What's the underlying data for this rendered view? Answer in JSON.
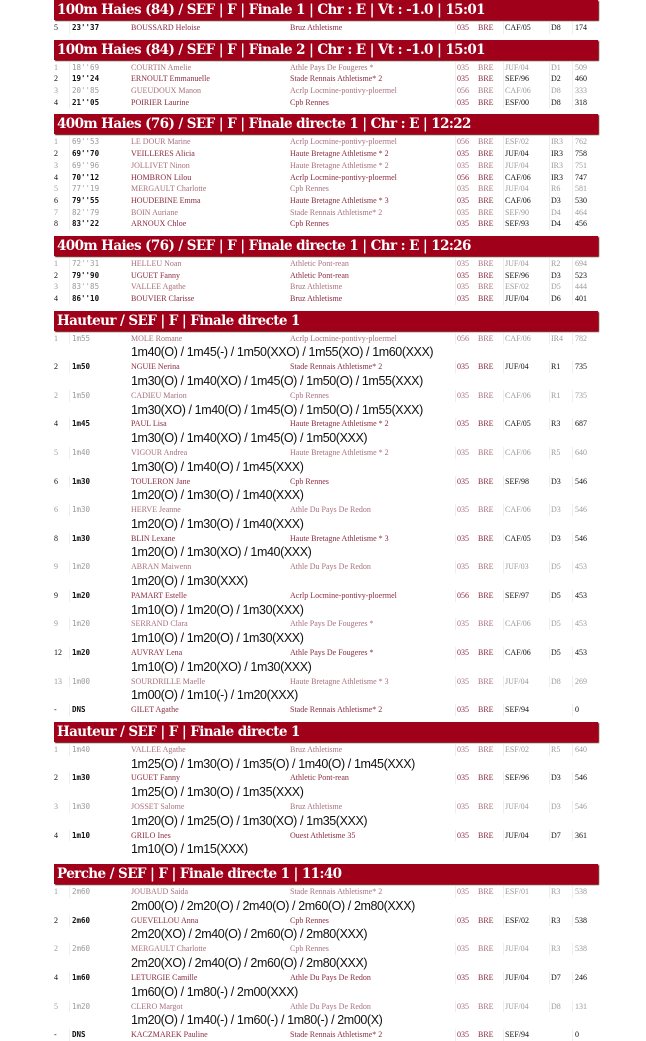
{
  "colors": {
    "header_bg": "#a0001a",
    "header_text": "#ffffff",
    "club_text": "#8a2a3e"
  },
  "sections": [
    {
      "title": "100m Haies (84) / SEF | F | Finale 1 | Chr : E | Vt : -1.0 | 15:01",
      "rows": [
        {
          "rank": "5",
          "perf": "23''37",
          "name": "BOUSSARD Heloise",
          "club": "Bruz Athletisme",
          "dept": "035",
          "region": "BRE",
          "cat": "CAF/05",
          "level": "D8",
          "points": "174"
        }
      ]
    },
    {
      "title": "100m Haies (84) / SEF | F | Finale 2 | Chr : E | Vt : -1.0 | 15:01",
      "rows": [
        {
          "rank": "1",
          "perf": "18''69",
          "name": "COURTIN Amelie",
          "club": "Athle Pays De Fougeres *",
          "dept": "035",
          "region": "BRE",
          "cat": "JUF/04",
          "level": "D1",
          "points": "509"
        },
        {
          "rank": "2",
          "perf": "19''24",
          "name": "ERNOULT Emmanuelle",
          "club": "Stade Rennais Athletisme* 2",
          "dept": "035",
          "region": "BRE",
          "cat": "SEF/96",
          "level": "D2",
          "points": "460"
        },
        {
          "rank": "3",
          "perf": "20''85",
          "name": "GUEUDOUX Manon",
          "club": "Acrlp Locmine-pontivy-ploermel",
          "dept": "056",
          "region": "BRE",
          "cat": "CAF/06",
          "level": "D8",
          "points": "333"
        },
        {
          "rank": "4",
          "perf": "21''05",
          "name": "POIRIER Laurine",
          "club": "Cpb Rennes",
          "dept": "035",
          "region": "BRE",
          "cat": "ESF/00",
          "level": "D8",
          "points": "318"
        }
      ]
    },
    {
      "title": "400m Haies (76) / SEF | F | Finale directe 1 | Chr : E | 12:22",
      "rows": [
        {
          "rank": "1",
          "perf": "69''53",
          "name": "LE DOUR Marine",
          "club": "Acrlp Locmine-pontivy-ploermel",
          "dept": "056",
          "region": "BRE",
          "cat": "ESF/02",
          "level": "IR3",
          "points": "762"
        },
        {
          "rank": "2",
          "perf": "69''70",
          "name": "VEILLERES Alicia",
          "club": "Haute Bretagne Athletisme * 2",
          "dept": "035",
          "region": "BRE",
          "cat": "JUF/04",
          "level": "IR3",
          "points": "758"
        },
        {
          "rank": "3",
          "perf": "69''96",
          "name": "JOLLIVET Ninon",
          "club": "Haute Bretagne Athletisme * 2",
          "dept": "035",
          "region": "BRE",
          "cat": "JUF/04",
          "level": "IR3",
          "points": "751"
        },
        {
          "rank": "4",
          "perf": "70''12",
          "name": "HOMBRON Lilou",
          "club": "Acrlp Locmine-pontivy-ploermel",
          "dept": "056",
          "region": "BRE",
          "cat": "CAF/06",
          "level": "IR3",
          "points": "747"
        },
        {
          "rank": "5",
          "perf": "77''19",
          "name": "MERGAULT Charlotte",
          "club": "Cpb Rennes",
          "dept": "035",
          "region": "BRE",
          "cat": "JUF/04",
          "level": "R6",
          "points": "581"
        },
        {
          "rank": "6",
          "perf": "79''55",
          "name": "HOUDEBINE Emma",
          "club": "Haute Bretagne Athletisme * 3",
          "dept": "035",
          "region": "BRE",
          "cat": "CAF/06",
          "level": "D3",
          "points": "530"
        },
        {
          "rank": "7",
          "perf": "82''79",
          "name": "BOIN Auriane",
          "club": "Stade Rennais Athletisme* 2",
          "dept": "035",
          "region": "BRE",
          "cat": "SEF/90",
          "level": "D4",
          "points": "464"
        },
        {
          "rank": "8",
          "perf": "83''22",
          "name": "ARNOUX Chloe",
          "club": "Cpb Rennes",
          "dept": "035",
          "region": "BRE",
          "cat": "SEF/93",
          "level": "D4",
          "points": "456"
        }
      ]
    },
    {
      "title": "400m Haies (76) / SEF | F | Finale directe 1 | Chr : E | 12:26",
      "rows": [
        {
          "rank": "1",
          "perf": "72''31",
          "name": "HELLEU Noan",
          "club": "Athletic Pont-rean",
          "dept": "035",
          "region": "BRE",
          "cat": "JUF/04",
          "level": "R2",
          "points": "694"
        },
        {
          "rank": "2",
          "perf": "79''90",
          "name": "UGUET Fanny",
          "club": "Athletic Pont-rean",
          "dept": "035",
          "region": "BRE",
          "cat": "SEF/96",
          "level": "D3",
          "points": "523"
        },
        {
          "rank": "3",
          "perf": "83''85",
          "name": "VALLEE Agathe",
          "club": "Bruz Athletisme",
          "dept": "035",
          "region": "BRE",
          "cat": "ESF/02",
          "level": "D5",
          "points": "444"
        },
        {
          "rank": "4",
          "perf": "86''10",
          "name": "BOUVIER Clarisse",
          "club": "Bruz Athletisme",
          "dept": "035",
          "region": "BRE",
          "cat": "JUF/04",
          "level": "D6",
          "points": "401"
        }
      ]
    },
    {
      "title": "Hauteur / SEF | F | Finale directe 1",
      "rows": [
        {
          "rank": "1",
          "perf": "1m55",
          "name": "MOLE Romane",
          "club": "Acrlp Locmine-pontivy-ploermel",
          "dept": "056",
          "region": "BRE",
          "cat": "CAF/06",
          "level": "IR4",
          "points": "782",
          "attempts": "1m40(O) / 1m45(-) / 1m50(XXO) / 1m55(XO) / 1m60(XXX)"
        },
        {
          "rank": "2",
          "perf": "1m50",
          "name": "NGUIE Nerina",
          "club": "Stade Rennais Athletisme* 2",
          "dept": "035",
          "region": "BRE",
          "cat": "JUF/04",
          "level": "R1",
          "points": "735",
          "attempts": "1m30(O) / 1m40(XO) / 1m45(O) / 1m50(O) / 1m55(XXX)"
        },
        {
          "rank": "2",
          "perf": "1m50",
          "name": "CADIEU Marion",
          "club": "Cpb Rennes",
          "dept": "035",
          "region": "BRE",
          "cat": "CAF/06",
          "level": "R1",
          "points": "735",
          "attempts": "1m30(XO) / 1m40(O) / 1m45(O) / 1m50(O) / 1m55(XXX)"
        },
        {
          "rank": "4",
          "perf": "1m45",
          "name": "PAUL Lisa",
          "club": "Haute Bretagne Athletisme * 2",
          "dept": "035",
          "region": "BRE",
          "cat": "CAF/05",
          "level": "R3",
          "points": "687",
          "attempts": "1m30(O) / 1m40(XO) / 1m45(O) / 1m50(XXX)"
        },
        {
          "rank": "5",
          "perf": "1m40",
          "name": "VIGOUR Andrea",
          "club": "Haute Bretagne Athletisme * 2",
          "dept": "035",
          "region": "BRE",
          "cat": "CAF/06",
          "level": "R5",
          "points": "640",
          "attempts": "1m30(O) / 1m40(O) / 1m45(XXX)"
        },
        {
          "rank": "6",
          "perf": "1m30",
          "name": "TOULERON Jane",
          "club": "Cpb Rennes",
          "dept": "035",
          "region": "BRE",
          "cat": "SEF/98",
          "level": "D3",
          "points": "546",
          "attempts": "1m20(O) / 1m30(O) / 1m40(XXX)"
        },
        {
          "rank": "6",
          "perf": "1m30",
          "name": "HERVE Jeanne",
          "club": "Athle Du Pays De Redon",
          "dept": "035",
          "region": "BRE",
          "cat": "CAF/06",
          "level": "D3",
          "points": "546",
          "attempts": "1m20(O) / 1m30(O) / 1m40(XXX)"
        },
        {
          "rank": "8",
          "perf": "1m30",
          "name": "BLIN Lexane",
          "club": "Haute Bretagne Athletisme * 3",
          "dept": "035",
          "region": "BRE",
          "cat": "CAF/05",
          "level": "D3",
          "points": "546",
          "attempts": "1m20(O) / 1m30(XO) / 1m40(XXX)"
        },
        {
          "rank": "9",
          "perf": "1m20",
          "name": "ABRAN Maiwenn",
          "club": "Athle Du Pays De Redon",
          "dept": "035",
          "region": "BRE",
          "cat": "JUF/03",
          "level": "D5",
          "points": "453",
          "attempts": "1m20(O) / 1m30(XXX)"
        },
        {
          "rank": "9",
          "perf": "1m20",
          "name": "PAMART Estelle",
          "club": "Acrlp Locmine-pontivy-ploermel",
          "dept": "056",
          "region": "BRE",
          "cat": "SEF/97",
          "level": "D5",
          "points": "453",
          "attempts": "1m10(O) / 1m20(O) / 1m30(XXX)"
        },
        {
          "rank": "9",
          "perf": "1m20",
          "name": "SERRAND Clara",
          "club": "Athle Pays De Fougeres *",
          "dept": "035",
          "region": "BRE",
          "cat": "CAF/06",
          "level": "D5",
          "points": "453",
          "attempts": "1m10(O) / 1m20(O) / 1m30(XXX)"
        },
        {
          "rank": "12",
          "perf": "1m20",
          "name": "AUVRAY Lena",
          "club": "Athle Pays De Fougeres *",
          "dept": "035",
          "region": "BRE",
          "cat": "CAF/06",
          "level": "D5",
          "points": "453",
          "attempts": "1m10(O) / 1m20(XO) / 1m30(XXX)"
        },
        {
          "rank": "13",
          "perf": "1m00",
          "name": "SOURDRILLE Maelle",
          "club": "Haute Bretagne Athletisme * 3",
          "dept": "035",
          "region": "BRE",
          "cat": "JUF/04",
          "level": "D8",
          "points": "269",
          "attempts": "1m00(O) / 1m10(-) / 1m20(XXX)"
        },
        {
          "rank": "-",
          "perf": "DNS",
          "name": "GILET Agathe",
          "club": "Stade Rennais Athletisme* 2",
          "dept": "035",
          "region": "BRE",
          "cat": "SEF/94",
          "level": "",
          "points": "0"
        }
      ]
    },
    {
      "title": "Hauteur / SEF | F | Finale directe 1",
      "rows": [
        {
          "rank": "1",
          "perf": "1m40",
          "name": "VALLEE Agathe",
          "club": "Bruz Athletisme",
          "dept": "035",
          "region": "BRE",
          "cat": "ESF/02",
          "level": "R5",
          "points": "640",
          "attempts": "1m25(O) / 1m30(O) / 1m35(O) / 1m40(O) / 1m45(XXX)"
        },
        {
          "rank": "2",
          "perf": "1m30",
          "name": "UGUET Fanny",
          "club": "Athletic Pont-rean",
          "dept": "035",
          "region": "BRE",
          "cat": "SEF/96",
          "level": "D3",
          "points": "546",
          "attempts": "1m25(O) / 1m30(O) / 1m35(XXX)"
        },
        {
          "rank": "3",
          "perf": "1m30",
          "name": "JOSSET Salome",
          "club": "Bruz Athletisme",
          "dept": "035",
          "region": "BRE",
          "cat": "JUF/04",
          "level": "D3",
          "points": "546",
          "attempts": "1m20(O) / 1m25(O) / 1m30(XO) / 1m35(XXX)"
        },
        {
          "rank": "4",
          "perf": "1m10",
          "name": "GRILO Ines",
          "club": "Ouest Athletisme 35",
          "dept": "035",
          "region": "BRE",
          "cat": "JUF/04",
          "level": "D7",
          "points": "361",
          "attempts": "1m10(O) / 1m15(XXX)"
        }
      ]
    },
    {
      "title": "Perche / SEF | F | Finale directe 1 | 11:40",
      "rows": [
        {
          "rank": "1",
          "perf": "2m60",
          "name": "JOUBAUD Saida",
          "club": "Stade Rennais Athletisme* 2",
          "dept": "035",
          "region": "BRE",
          "cat": "ESF/01",
          "level": "R3",
          "points": "538",
          "attempts": "2m00(O) / 2m20(O) / 2m40(O) / 2m60(O) / 2m80(XXX)"
        },
        {
          "rank": "2",
          "perf": "2m60",
          "name": "GUEVELLOU Anna",
          "club": "Cpb Rennes",
          "dept": "035",
          "region": "BRE",
          "cat": "ESF/02",
          "level": "R3",
          "points": "538",
          "attempts": "2m20(XO) / 2m40(O) / 2m60(O) / 2m80(XXX)"
        },
        {
          "rank": "2",
          "perf": "2m60",
          "name": "MERGAULT Charlotte",
          "club": "Cpb Rennes",
          "dept": "035",
          "region": "BRE",
          "cat": "JUF/04",
          "level": "R3",
          "points": "538",
          "attempts": "2m20(XO) / 2m40(O) / 2m60(O) / 2m80(XXX)"
        },
        {
          "rank": "4",
          "perf": "1m60",
          "name": "LETURGIE Camille",
          "club": "Athle Du Pays De Redon",
          "dept": "035",
          "region": "BRE",
          "cat": "JUF/04",
          "level": "D7",
          "points": "246",
          "attempts": "1m60(O) / 1m80(-) / 2m00(XXX)"
        },
        {
          "rank": "5",
          "perf": "1m20",
          "name": "CLERO Margot",
          "club": "Athle Du Pays De Redon",
          "dept": "035",
          "region": "BRE",
          "cat": "JUF/04",
          "level": "D8",
          "points": "131",
          "attempts": "1m20(O) / 1m40(-) / 1m60(-) / 1m80(-) / 2m00(X)"
        },
        {
          "rank": "-",
          "perf": "DNS",
          "name": "KACZMAREK Pauline",
          "club": "Stade Rennais Athletisme* 2",
          "dept": "035",
          "region": "BRE",
          "cat": "SEF/94",
          "level": "",
          "points": "0"
        }
      ]
    }
  ]
}
